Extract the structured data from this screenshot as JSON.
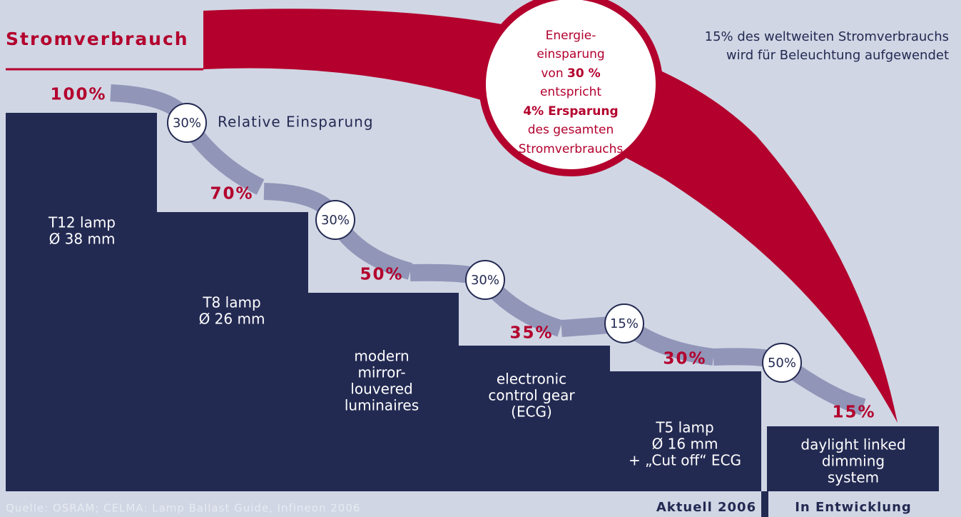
{
  "title": "Stromverbrauch",
  "note": [
    "15% des weltweiten Stromverbrauchs",
    "wird für Beleuchtung aufgewendet"
  ],
  "callout": [
    "Energie-",
    "einsparung",
    [
      "von ",
      "30 %"
    ],
    "entspricht",
    "4% Ersparung",
    "des gesamten",
    "Stromverbrauchs"
  ],
  "relative_label": "Relative Einsparung",
  "steps": [
    {
      "percent": "100%",
      "label": [
        "T12 lamp",
        "Ø 38 mm"
      ]
    },
    {
      "percent": "70%",
      "label": [
        "T8 lamp",
        "Ø 26 mm"
      ]
    },
    {
      "percent": "50%",
      "label": [
        "modern",
        "mirror-",
        "louvered",
        "luminaires"
      ]
    },
    {
      "percent": "35%",
      "label": [
        "electronic",
        "control gear",
        "(ECG)"
      ]
    },
    {
      "percent": "30%",
      "label": [
        "T5 lamp",
        "Ø 16 mm",
        "+ „Cut off“ ECG"
      ]
    },
    {
      "percent": "15%",
      "label": [
        "daylight linked",
        "dimming",
        "system"
      ]
    }
  ],
  "savings": [
    "30%",
    "30%",
    "30%",
    "15%",
    "50%"
  ],
  "source": "Quelle: OSRAM; CELMA: Lamp Ballast Guide, Infineon 2006",
  "footer_labels": [
    "Aktuell 2006",
    "In Entwicklung"
  ]
}
